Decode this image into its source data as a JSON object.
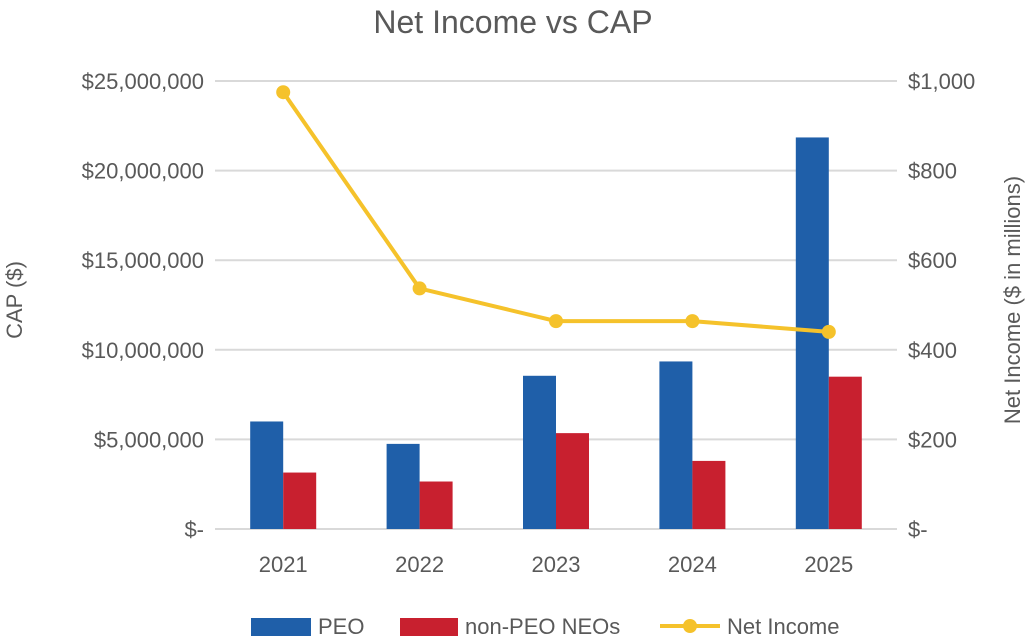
{
  "chart_data": {
    "type": "bar",
    "title": "Net Income vs CAP",
    "categories": [
      "2021",
      "2022",
      "2023",
      "2024",
      "2025"
    ],
    "ylabel": "CAP ($)",
    "y2label": "Net Income ($ in millions)",
    "ylim": [
      0,
      25000000
    ],
    "y2lim": [
      0,
      1000
    ],
    "yticks": [
      0,
      5000000,
      10000000,
      15000000,
      20000000,
      25000000
    ],
    "ytick_labels": [
      "$-",
      "$5,000,000",
      "$10,000,000",
      "$15,000,000",
      "$20,000,000",
      "$25,000,000"
    ],
    "y2ticks": [
      0,
      200,
      400,
      600,
      800,
      1000
    ],
    "y2tick_labels": [
      "$-",
      "$200",
      "$400",
      "$600",
      "$800",
      "$1,000"
    ],
    "grid": true,
    "legend_position": "bottom",
    "series": [
      {
        "name": "PEO",
        "type": "bar",
        "axis": "left",
        "color": "#1f5fa9",
        "values": [
          6000000,
          4750000,
          8550000,
          9350000,
          21850000
        ]
      },
      {
        "name": "non-PEO NEOs",
        "type": "bar",
        "axis": "left",
        "color": "#c8202f",
        "values": [
          3150000,
          2650000,
          5350000,
          3800000,
          8500000
        ]
      },
      {
        "name": "Net Income",
        "type": "line",
        "axis": "right",
        "color": "#f5c22b",
        "values": [
          975,
          537,
          464,
          464,
          440
        ]
      }
    ]
  }
}
